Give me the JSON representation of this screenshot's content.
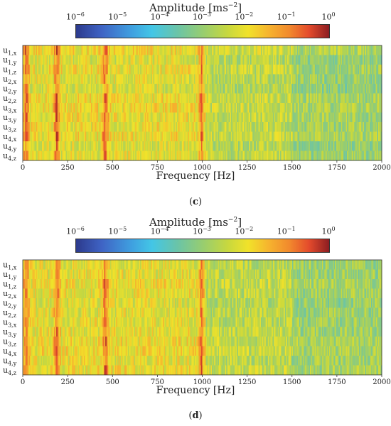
{
  "chart_data": [
    {
      "type": "heatmap",
      "panel_caption_open": "(",
      "panel_caption_letter": "c",
      "panel_caption_close": ")",
      "colorbar": {
        "title": "Amplitude [ms",
        "title_exp": "−2",
        "title_close": "]",
        "scale": "log",
        "range": [
          1e-06,
          1
        ],
        "ticks": [
          {
            "base": "10",
            "exp": "−6"
          },
          {
            "base": "10",
            "exp": "−5"
          },
          {
            "base": "10",
            "exp": "−4"
          },
          {
            "base": "10",
            "exp": "−3"
          },
          {
            "base": "10",
            "exp": "−2"
          },
          {
            "base": "10",
            "exp": "−1"
          },
          {
            "base": "10",
            "exp": "0"
          }
        ]
      },
      "xlabel": "Frequency [Hz]",
      "xlim": [
        0,
        2000
      ],
      "xticks": [
        "0",
        "250",
        "500",
        "750",
        "1000",
        "1250",
        "1500",
        "1750",
        "2000"
      ],
      "rows": [
        {
          "base": "u",
          "sub": "1,x"
        },
        {
          "base": "u",
          "sub": "1,y"
        },
        {
          "base": "u",
          "sub": "1,z"
        },
        {
          "base": "u",
          "sub": "2,x"
        },
        {
          "base": "u",
          "sub": "2,y"
        },
        {
          "base": "u",
          "sub": "2,z"
        },
        {
          "base": "u",
          "sub": "3,x"
        },
        {
          "base": "u",
          "sub": "3,y"
        },
        {
          "base": "u",
          "sub": "3,z"
        },
        {
          "base": "u",
          "sub": "4,x"
        },
        {
          "base": "u",
          "sub": "4,y"
        },
        {
          "base": "u",
          "sub": "4,z"
        }
      ],
      "peak_frequencies_hz": [
        20,
        190,
        460,
        1000
      ],
      "approx_log10_amplitude": {
        "0-1000 Hz": -2.2,
        "near 190 Hz": -0.8,
        "near 460 Hz": -0.8,
        "1000-1500 Hz": -2.6,
        "1500-2000 Hz": -3.0
      }
    },
    {
      "type": "heatmap",
      "panel_caption_open": "(",
      "panel_caption_letter": "d",
      "panel_caption_close": ")",
      "colorbar": {
        "title": "Amplitude [ms",
        "title_exp": "−2",
        "title_close": "]",
        "scale": "log",
        "range": [
          1e-06,
          1
        ],
        "ticks": [
          {
            "base": "10",
            "exp": "−6"
          },
          {
            "base": "10",
            "exp": "−5"
          },
          {
            "base": "10",
            "exp": "−4"
          },
          {
            "base": "10",
            "exp": "−3"
          },
          {
            "base": "10",
            "exp": "−2"
          },
          {
            "base": "10",
            "exp": "−1"
          },
          {
            "base": "10",
            "exp": "0"
          }
        ]
      },
      "xlabel": "Frequency [Hz]",
      "xlim": [
        0,
        2000
      ],
      "xticks": [
        "0",
        "250",
        "500",
        "750",
        "1000",
        "1250",
        "1500",
        "1750",
        "2000"
      ],
      "rows": [
        {
          "base": "u",
          "sub": "1,x"
        },
        {
          "base": "u",
          "sub": "1,y"
        },
        {
          "base": "u",
          "sub": "1,z"
        },
        {
          "base": "u",
          "sub": "2,x"
        },
        {
          "base": "u",
          "sub": "2,y"
        },
        {
          "base": "u",
          "sub": "2,z"
        },
        {
          "base": "u",
          "sub": "3,x"
        },
        {
          "base": "u",
          "sub": "3,y"
        },
        {
          "base": "u",
          "sub": "3,z"
        },
        {
          "base": "u",
          "sub": "4,x"
        },
        {
          "base": "u",
          "sub": "4,y"
        },
        {
          "base": "u",
          "sub": "4,z"
        }
      ],
      "peak_frequencies_hz": [
        20,
        190,
        460,
        1000
      ],
      "approx_log10_amplitude": {
        "0-1000 Hz": -2.3,
        "near 190 Hz": -0.9,
        "near 460 Hz": -0.8,
        "1000-1500 Hz": -2.6,
        "1500-2000 Hz": -2.9
      }
    }
  ]
}
